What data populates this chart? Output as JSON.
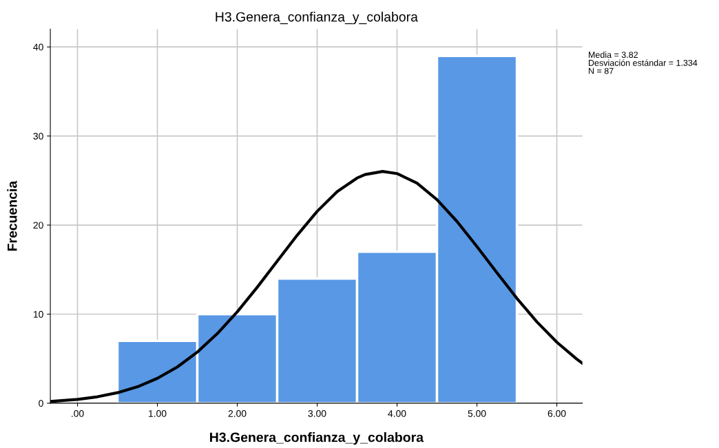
{
  "chart_data": {
    "type": "histogram",
    "title": "H3.Genera_confianza_y_colabora",
    "xlabel": "H3.Genera_confianza_y_colabora",
    "ylabel": "Frecuencia",
    "bins": [
      0.5,
      1.5,
      2.5,
      3.5,
      4.5,
      5.5
    ],
    "values": [
      7,
      10,
      14,
      17,
      39
    ],
    "color": "#5898e5",
    "series": [
      {
        "type": "line",
        "color": "#000000",
        "x": [
          -0.34,
          0,
          0.25,
          0.5,
          0.75,
          1.0,
          1.25,
          1.5,
          1.75,
          2.0,
          2.25,
          2.5,
          2.75,
          3.0,
          3.25,
          3.5,
          3.6,
          3.82,
          4.0,
          4.25,
          4.5,
          4.75,
          5.0,
          5.25,
          5.5,
          5.75,
          6.0,
          6.25,
          6.32
        ],
        "values": [
          0.2,
          0.43,
          0.72,
          1.18,
          1.84,
          2.79,
          4.07,
          5.74,
          7.81,
          10.26,
          13.02,
          15.95,
          18.86,
          21.54,
          23.75,
          25.28,
          25.67,
          26.02,
          25.78,
          24.7,
          22.85,
          20.41,
          17.59,
          14.65,
          11.77,
          9.14,
          6.85,
          4.95,
          4.49
        ]
      }
    ],
    "xlim": [
      -0.34,
      6.32
    ],
    "xticks": [
      {
        "value": 0,
        "label": ".00"
      },
      {
        "value": 1,
        "label": "1.00"
      },
      {
        "value": 2,
        "label": "2.00"
      },
      {
        "value": 3,
        "label": "3.00"
      },
      {
        "value": 4,
        "label": "4.00"
      },
      {
        "value": 5,
        "label": "5.00"
      },
      {
        "value": 6,
        "label": "6.00"
      }
    ],
    "ylim": [
      0,
      42
    ],
    "yticks": [
      0,
      10,
      20,
      30,
      40
    ],
    "grid": true,
    "annotations": [
      "Media = 3.82",
      "Desviación estándar = 1.334",
      "N = 87"
    ]
  }
}
